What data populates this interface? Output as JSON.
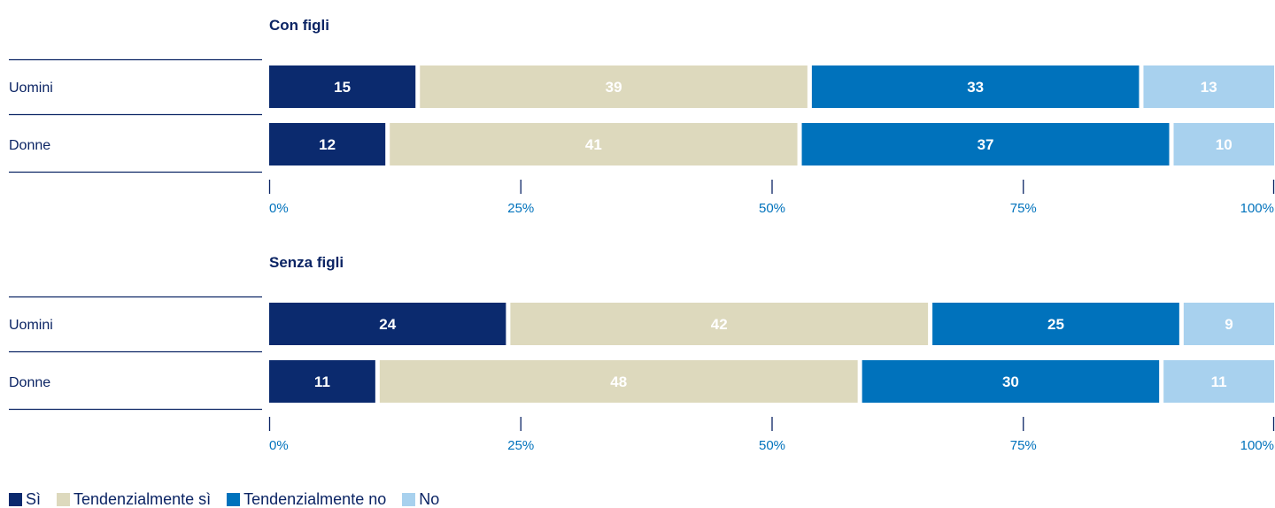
{
  "chart_data": {
    "type": "bar",
    "orientation": "horizontal",
    "stacked": true,
    "xlim": [
      0,
      100
    ],
    "x_ticks": [
      "0%",
      "25%",
      "50%",
      "75%",
      "100%"
    ],
    "categories": [
      "Sì",
      "Tendenzialmente sì",
      "Tendenzialmente no",
      "No"
    ],
    "colors": [
      "#0b2a6e",
      "#ddd9bd",
      "#0072bc",
      "#a8d1ee"
    ],
    "label_colors": [
      "#ffffff",
      "#ffffff",
      "#ffffff",
      "#ffffff"
    ],
    "panels": [
      {
        "title": "Con figli",
        "rows": [
          {
            "label": "Uomini",
            "values": [
              15,
              39,
              33,
              13
            ]
          },
          {
            "label": "Donne",
            "values": [
              12,
              41,
              37,
              10
            ]
          }
        ]
      },
      {
        "title": "Senza figli",
        "rows": [
          {
            "label": "Uomini",
            "values": [
              24,
              42,
              25,
              9
            ]
          },
          {
            "label": "Donne",
            "values": [
              11,
              48,
              30,
              11
            ]
          }
        ]
      }
    ],
    "legend": {
      "position": "bottom-left",
      "items": [
        {
          "label": "Sì",
          "color": "#0b2a6e"
        },
        {
          "label": "Tendenzialmente sì",
          "color": "#ddd9bd"
        },
        {
          "label": "Tendenzialmente no",
          "color": "#0072bc"
        },
        {
          "label": "No",
          "color": "#a8d1ee"
        }
      ]
    }
  }
}
